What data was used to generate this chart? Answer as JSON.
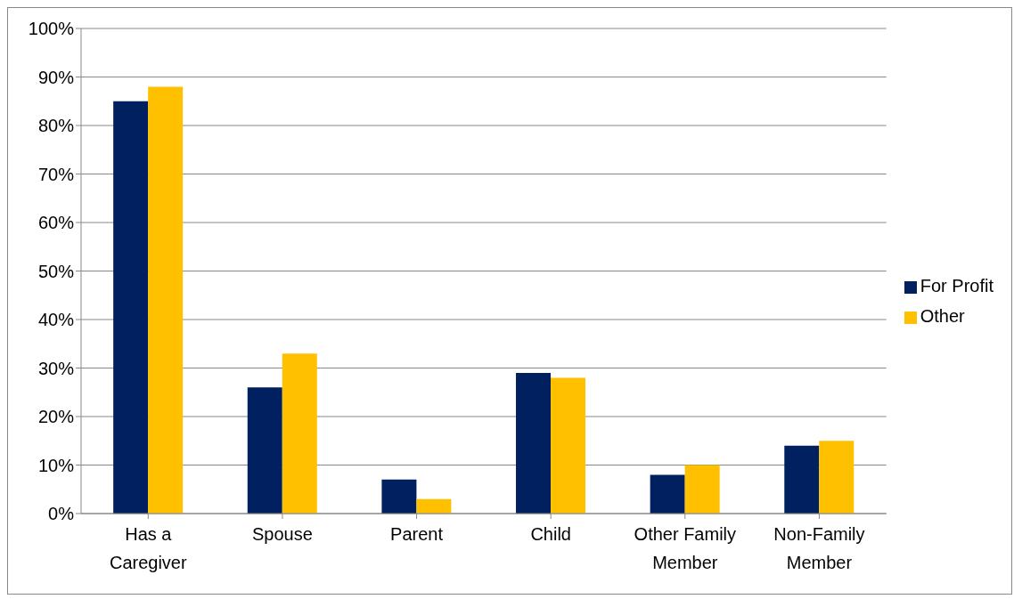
{
  "chart_data": {
    "type": "bar",
    "categories": [
      "Has a Caregiver",
      "Spouse",
      "Parent",
      "Child",
      "Other Family Member",
      "Non-Family Member"
    ],
    "series": [
      {
        "name": "For Profit",
        "color": "#002060",
        "values": [
          85,
          26,
          7,
          29,
          8,
          14
        ]
      },
      {
        "name": "Other",
        "color": "#ffc000",
        "values": [
          88,
          33,
          3,
          28,
          10,
          15
        ]
      }
    ],
    "ylim": [
      0,
      100
    ],
    "yticks": [
      {
        "value": 0,
        "label": "0%"
      },
      {
        "value": 10,
        "label": "10%"
      },
      {
        "value": 20,
        "label": "20%"
      },
      {
        "value": 30,
        "label": "30%"
      },
      {
        "value": 40,
        "label": "40%"
      },
      {
        "value": 50,
        "label": "50%"
      },
      {
        "value": 60,
        "label": "60%"
      },
      {
        "value": 70,
        "label": "70%"
      },
      {
        "value": 80,
        "label": "80%"
      },
      {
        "value": 90,
        "label": "90%"
      },
      {
        "value": 100,
        "label": "100%"
      }
    ],
    "grid": "y",
    "legend": "right"
  }
}
